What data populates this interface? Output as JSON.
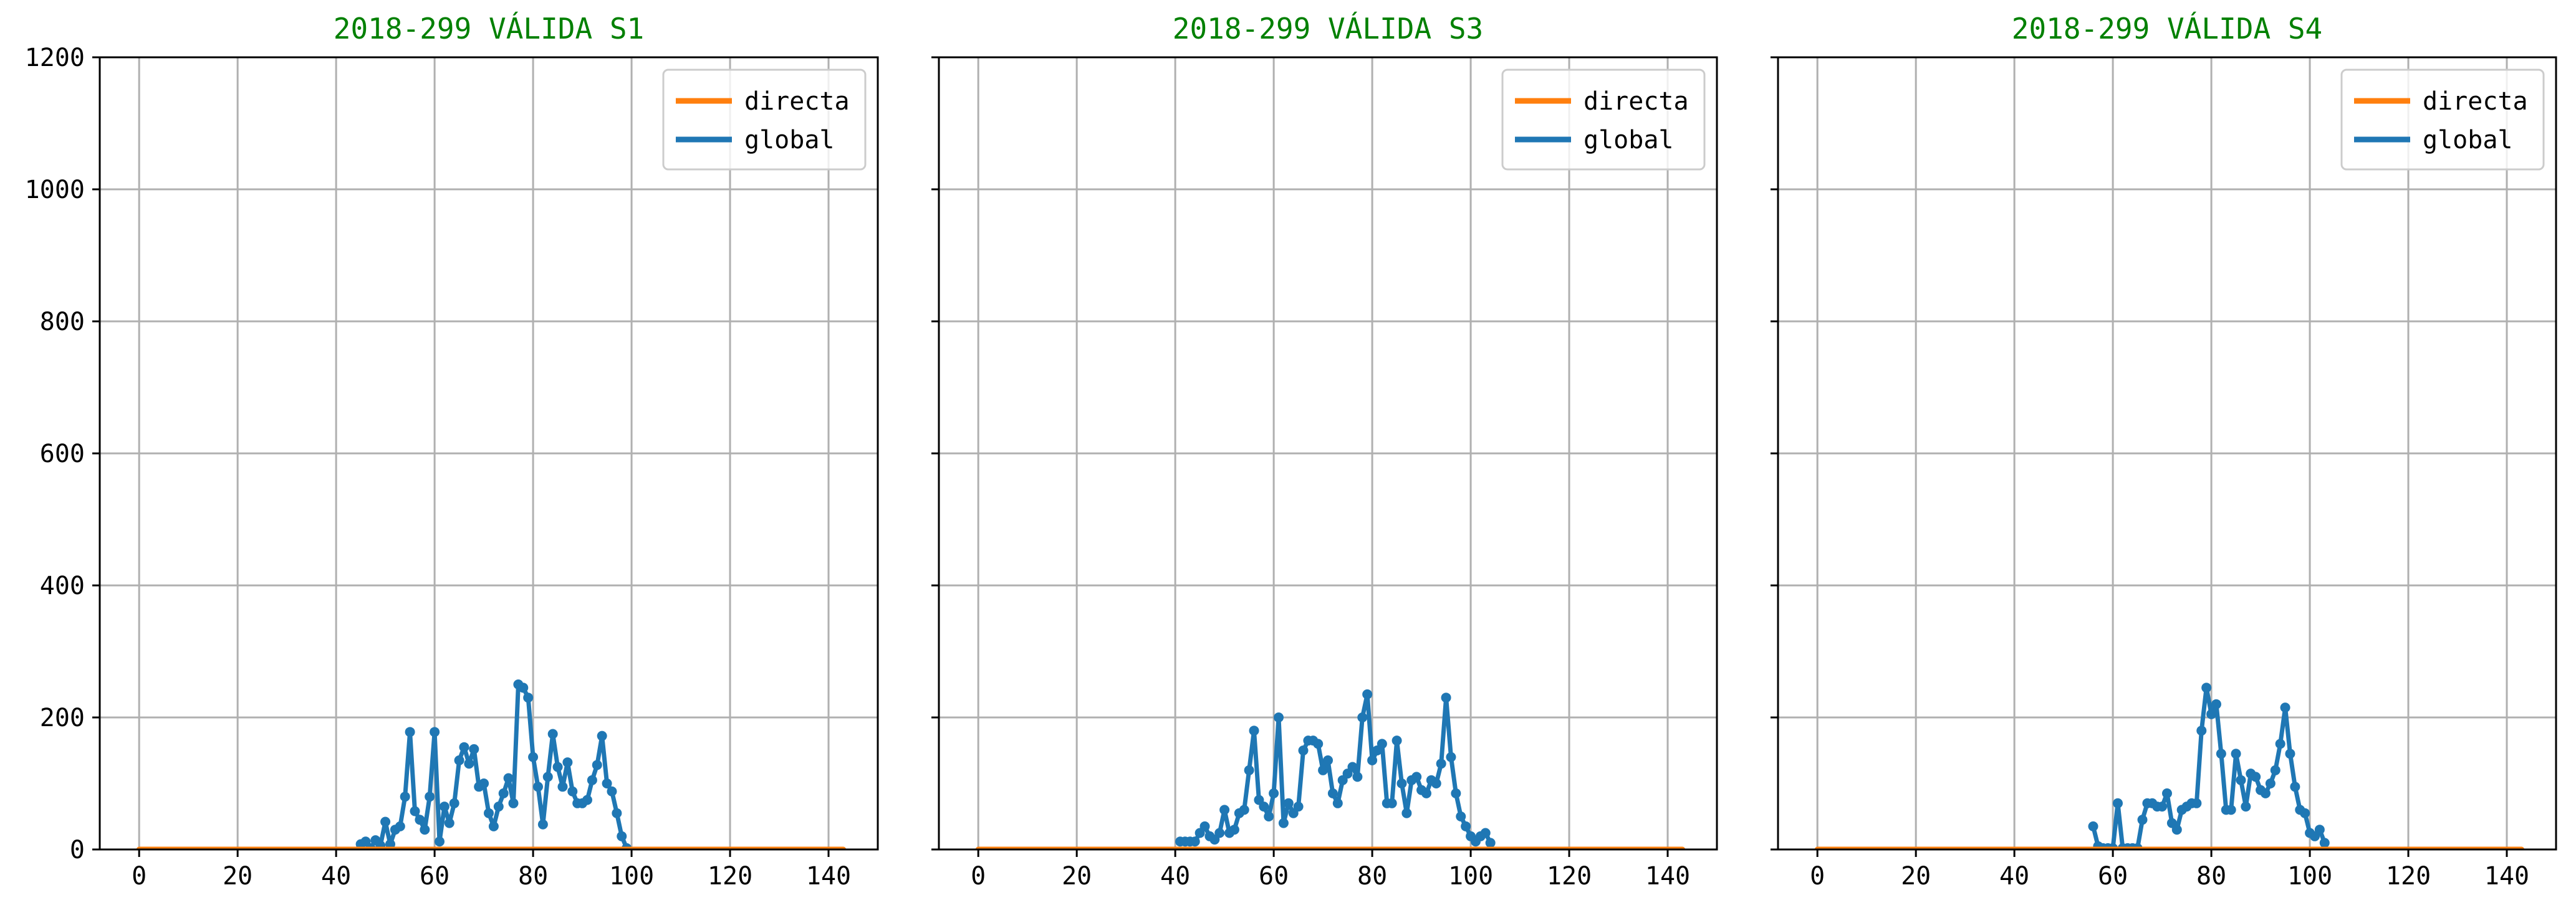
{
  "chart_data": [
    {
      "type": "line",
      "title": "2018-299 VÁLIDA S1",
      "xlim": [
        -8,
        150
      ],
      "ylim": [
        0,
        1200
      ],
      "xticks": [
        0,
        20,
        40,
        60,
        80,
        100,
        120,
        140
      ],
      "yticks": [
        0,
        200,
        400,
        600,
        800,
        1000,
        1200
      ],
      "grid": true,
      "legend_position": "top-right",
      "series": [
        {
          "name": "directa",
          "color": "#ff7f0e",
          "x": [
            0,
            143
          ],
          "y": [
            0,
            0
          ]
        },
        {
          "name": "global",
          "color": "#1f77b4",
          "markers": true,
          "x": [
            45,
            46,
            47,
            48,
            49,
            50,
            51,
            52,
            53,
            54,
            55,
            56,
            57,
            58,
            59,
            60,
            61,
            62,
            63,
            64,
            65,
            66,
            67,
            68,
            69,
            70,
            71,
            72,
            73,
            74,
            75,
            76,
            77,
            78,
            79,
            80,
            81,
            82,
            83,
            84,
            85,
            86,
            87,
            88,
            89,
            90,
            91,
            92,
            93,
            94,
            95,
            96,
            97,
            98,
            99
          ],
          "y": [
            8,
            12,
            2,
            14,
            6,
            42,
            8,
            30,
            35,
            80,
            178,
            58,
            45,
            30,
            80,
            178,
            12,
            65,
            40,
            70,
            135,
            155,
            130,
            152,
            95,
            100,
            55,
            35,
            65,
            85,
            108,
            70,
            250,
            245,
            230,
            140,
            95,
            38,
            110,
            175,
            125,
            95,
            132,
            88,
            70,
            70,
            75,
            105,
            128,
            172,
            100,
            88,
            55,
            20,
            2
          ]
        }
      ]
    },
    {
      "type": "line",
      "title": "2018-299 VÁLIDA S3",
      "xlim": [
        -8,
        150
      ],
      "ylim": [
        0,
        1200
      ],
      "xticks": [
        0,
        20,
        40,
        60,
        80,
        100,
        120,
        140
      ],
      "yticks": [
        0,
        200,
        400,
        600,
        800,
        1000,
        1200
      ],
      "grid": true,
      "legend_position": "top-right",
      "series": [
        {
          "name": "directa",
          "color": "#ff7f0e",
          "x": [
            0,
            143
          ],
          "y": [
            0,
            0
          ]
        },
        {
          "name": "global",
          "color": "#1f77b4",
          "markers": true,
          "x": [
            41,
            42,
            43,
            44,
            45,
            46,
            47,
            48,
            49,
            50,
            51,
            52,
            53,
            54,
            55,
            56,
            57,
            58,
            59,
            60,
            61,
            62,
            63,
            64,
            65,
            66,
            67,
            68,
            69,
            70,
            71,
            72,
            73,
            74,
            75,
            76,
            77,
            78,
            79,
            80,
            81,
            82,
            83,
            84,
            85,
            86,
            87,
            88,
            89,
            90,
            91,
            92,
            93,
            94,
            95,
            96,
            97,
            98,
            99,
            100,
            101,
            102,
            103,
            104
          ],
          "y": [
            12,
            12,
            12,
            12,
            25,
            35,
            20,
            15,
            25,
            60,
            25,
            30,
            55,
            60,
            120,
            180,
            75,
            65,
            50,
            85,
            200,
            40,
            70,
            55,
            65,
            150,
            165,
            165,
            160,
            120,
            135,
            85,
            70,
            105,
            115,
            125,
            110,
            200,
            235,
            135,
            150,
            160,
            70,
            70,
            165,
            100,
            55,
            105,
            110,
            90,
            85,
            105,
            100,
            130,
            230,
            140,
            85,
            50,
            35,
            20,
            12,
            20,
            25,
            10
          ]
        }
      ]
    },
    {
      "type": "line",
      "title": "2018-299 VÁLIDA S4",
      "xlim": [
        -8,
        150
      ],
      "ylim": [
        0,
        1200
      ],
      "xticks": [
        0,
        20,
        40,
        60,
        80,
        100,
        120,
        140
      ],
      "yticks": [
        0,
        200,
        400,
        600,
        800,
        1000,
        1200
      ],
      "grid": true,
      "legend_position": "top-right",
      "series": [
        {
          "name": "directa",
          "color": "#ff7f0e",
          "x": [
            0,
            143
          ],
          "y": [
            0,
            0
          ]
        },
        {
          "name": "global",
          "color": "#1f77b4",
          "markers": true,
          "x": [
            56,
            57,
            58,
            59,
            60,
            61,
            62,
            63,
            64,
            65,
            66,
            67,
            68,
            69,
            70,
            71,
            72,
            73,
            74,
            75,
            76,
            77,
            78,
            79,
            80,
            81,
            82,
            83,
            84,
            85,
            86,
            87,
            88,
            89,
            90,
            91,
            92,
            93,
            94,
            95,
            96,
            97,
            98,
            99,
            100,
            101,
            102,
            103
          ],
          "y": [
            35,
            5,
            2,
            2,
            2,
            70,
            2,
            2,
            2,
            2,
            45,
            70,
            70,
            65,
            65,
            85,
            40,
            30,
            60,
            65,
            70,
            70,
            180,
            245,
            205,
            220,
            145,
            60,
            60,
            145,
            105,
            65,
            115,
            110,
            90,
            85,
            100,
            120,
            160,
            215,
            145,
            95,
            60,
            55,
            25,
            20,
            30,
            10
          ]
        }
      ]
    }
  ]
}
